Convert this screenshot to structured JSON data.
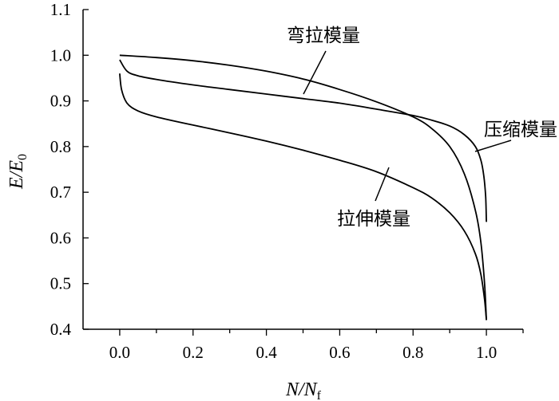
{
  "chart_data": {
    "type": "line",
    "xlabel": "N/N",
    "xlabel_sub": "f",
    "ylabel": "E/E",
    "ylabel_sub": "0",
    "xlim": [
      -0.1,
      1.1
    ],
    "ylim": [
      0.4,
      1.1
    ],
    "x_ticks": [
      0.0,
      0.2,
      0.4,
      0.6,
      0.8,
      1.0
    ],
    "x_tick_labels": [
      "0.0",
      "0.2",
      "0.4",
      "0.6",
      "0.8",
      "1.0"
    ],
    "y_ticks": [
      0.4,
      0.5,
      0.6,
      0.7,
      0.8,
      0.9,
      1.0,
      1.1
    ],
    "y_tick_labels": [
      "0.4",
      "0.5",
      "0.6",
      "0.7",
      "0.8",
      "0.9",
      "1.0",
      "1.1"
    ],
    "grid": false,
    "series": [
      {
        "name": "弯拉模量",
        "x": [
          0.0,
          0.1,
          0.2,
          0.3,
          0.4,
          0.5,
          0.6,
          0.7,
          0.8,
          0.85,
          0.9,
          0.94,
          0.97,
          0.985,
          0.995,
          1.0
        ],
        "y": [
          1.0,
          0.995,
          0.988,
          0.978,
          0.965,
          0.948,
          0.925,
          0.898,
          0.865,
          0.84,
          0.8,
          0.74,
          0.66,
          0.59,
          0.5,
          0.42
        ]
      },
      {
        "name": "压缩模量",
        "x": [
          0.0,
          0.02,
          0.05,
          0.1,
          0.2,
          0.3,
          0.4,
          0.5,
          0.6,
          0.7,
          0.8,
          0.85,
          0.9,
          0.94,
          0.97,
          0.985,
          0.993,
          0.998,
          1.0
        ],
        "y": [
          0.99,
          0.965,
          0.955,
          0.947,
          0.935,
          0.925,
          0.915,
          0.905,
          0.895,
          0.882,
          0.868,
          0.858,
          0.845,
          0.826,
          0.8,
          0.77,
          0.735,
          0.69,
          0.635
        ]
      },
      {
        "name": "拉伸模量",
        "x": [
          0.0,
          0.005,
          0.02,
          0.05,
          0.1,
          0.2,
          0.3,
          0.4,
          0.5,
          0.6,
          0.7,
          0.8,
          0.85,
          0.9,
          0.94,
          0.97,
          0.985,
          0.995,
          1.0
        ],
        "y": [
          0.96,
          0.925,
          0.895,
          0.878,
          0.865,
          0.847,
          0.83,
          0.812,
          0.792,
          0.77,
          0.745,
          0.71,
          0.688,
          0.655,
          0.615,
          0.565,
          0.52,
          0.465,
          0.42
        ]
      }
    ]
  }
}
